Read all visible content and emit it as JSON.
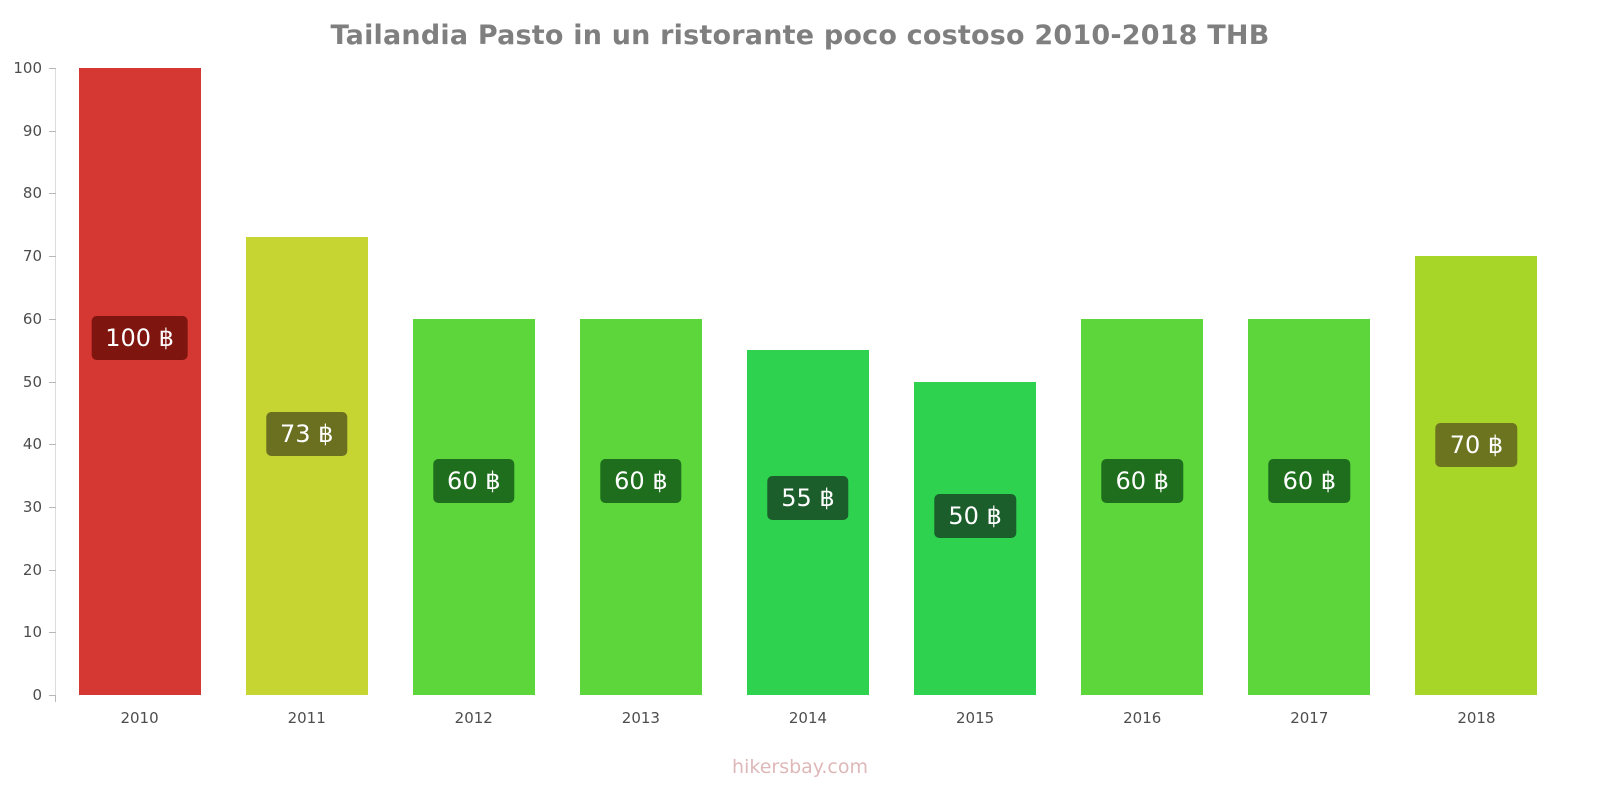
{
  "title": "Tailandia Pasto in un ristorante poco costoso 2010-2018 THB",
  "footer": "hikersbay.com",
  "colors": {
    "title_text": "#7f7f7f",
    "axis_text": "#4d4d4d",
    "footer_text": "#deb8b8",
    "axis_line": "#dcdcdc"
  },
  "chart_data": {
    "type": "bar",
    "title": "Tailandia Pasto in un ristorante poco costoso 2010-2018 THB",
    "xlabel": "",
    "ylabel": "",
    "categories": [
      "2010",
      "2011",
      "2012",
      "2013",
      "2014",
      "2015",
      "2016",
      "2017",
      "2018"
    ],
    "values": [
      100,
      73,
      60,
      60,
      55,
      50,
      60,
      60,
      70
    ],
    "labels": [
      "100 ฿",
      "73 ฿",
      "60 ฿",
      "60 ฿",
      "55 ฿",
      "50 ฿",
      "60 ฿",
      "60 ฿",
      "70 ฿"
    ],
    "bar_colors": [
      "#d53832",
      "#c7d533",
      "#5dd63c",
      "#5dd63c",
      "#2ed24e",
      "#2ed24e",
      "#5dd63c",
      "#5dd63c",
      "#a7d629"
    ],
    "label_bg_colors": [
      "#7e150f",
      "#6a7020",
      "#1e6e1e",
      "#1e6e1e",
      "#1b5e2b",
      "#1b5e2b",
      "#1e6e1e",
      "#1e6e1e",
      "#6d7420"
    ],
    "currency": "THB",
    "ylim": [
      0,
      100
    ],
    "yticks": [
      0,
      10,
      20,
      30,
      40,
      50,
      60,
      70,
      80,
      90,
      100
    ],
    "grid": false,
    "legend": "none"
  }
}
